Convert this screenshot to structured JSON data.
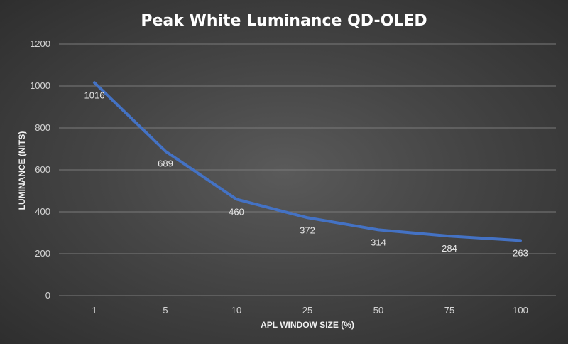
{
  "chart_data": {
    "type": "line",
    "title": "Peak White Luminance QD-OLED",
    "xlabel": "APL WINDOW SIZE (%)",
    "ylabel": "LUMINANCE (NITS)",
    "categories": [
      "1",
      "5",
      "10",
      "25",
      "50",
      "75",
      "100"
    ],
    "series": [
      {
        "name": "Peak White Luminance",
        "values": [
          1016,
          689,
          460,
          372,
          314,
          284,
          263
        ]
      }
    ],
    "ylim": [
      0,
      1200
    ],
    "yticks": [
      0,
      200,
      400,
      600,
      800,
      1000,
      1200
    ],
    "grid": true,
    "legend": "none",
    "series_color": "#4472c4"
  }
}
